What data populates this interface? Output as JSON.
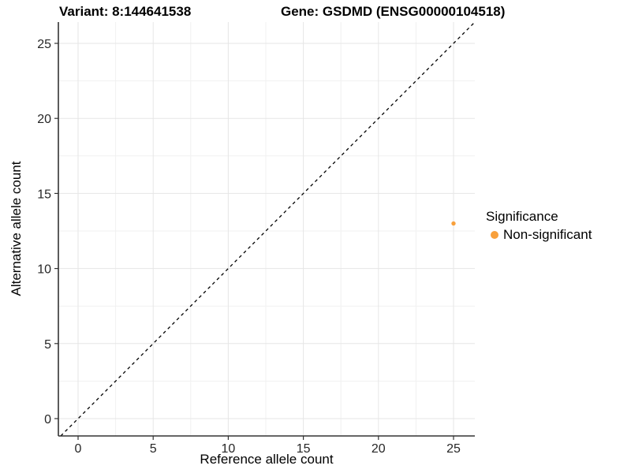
{
  "chart_data": {
    "type": "scatter",
    "title_left": "Variant: 8:144641538",
    "title_right": "Gene: GSDMD (ENSG00000104518)",
    "xlabel": "Reference allele count",
    "ylabel": "Alternative allele count",
    "x_ticks": [
      0,
      5,
      10,
      15,
      20,
      25
    ],
    "y_ticks": [
      0,
      5,
      10,
      15,
      20,
      25
    ],
    "x_minor_ticks": [
      2.5,
      7.5,
      12.5,
      17.5,
      22.5
    ],
    "y_minor_ticks": [
      2.5,
      7.5,
      12.5,
      17.5,
      22.5
    ],
    "xlim": [
      -1.3,
      26.4
    ],
    "ylim": [
      -1.2,
      26.4
    ],
    "grid": true,
    "points": [
      {
        "x": 25,
        "y": 13,
        "series": "Non-significant"
      }
    ],
    "reference_line": {
      "type": "identity",
      "slope": 1,
      "intercept": 0,
      "style": "dashed",
      "color": "#000000"
    },
    "legend": {
      "title": "Significance",
      "position": "right",
      "items": [
        {
          "label": "Non-significant",
          "color": "#F8A03C"
        }
      ]
    },
    "colors": {
      "point": "#F8A03C",
      "grid_major": "#e6e6e6",
      "grid_minor": "#f1f1f1",
      "axis_line": "#333333",
      "tick_text": "#262626"
    }
  }
}
